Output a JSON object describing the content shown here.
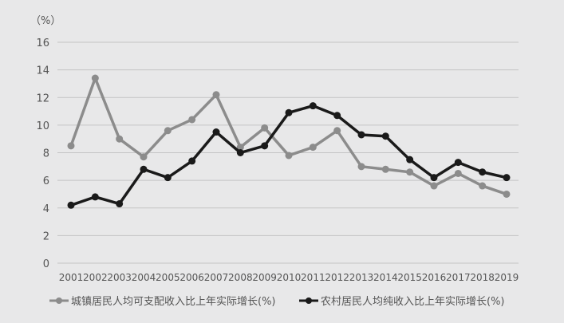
{
  "chart_data": {
    "type": "line",
    "title": "",
    "ylabel": "（%）",
    "xlabel": "",
    "ylim": [
      0,
      16
    ],
    "yticks": [
      0,
      2,
      4,
      6,
      8,
      10,
      12,
      14,
      16
    ],
    "grid": true,
    "legend_position": "bottom",
    "categories": [
      "2001",
      "2002",
      "2003",
      "2004",
      "2005",
      "2006",
      "2007",
      "2008",
      "2009",
      "2010",
      "2011",
      "2012",
      "2013",
      "2014",
      "2015",
      "2016",
      "2017",
      "2018",
      "2019"
    ],
    "series": [
      {
        "name": "城镇居民人均可支配收入比上年实际增长(%)",
        "color": "#8c8c8c",
        "values": [
          8.5,
          13.4,
          9.0,
          7.7,
          9.6,
          10.4,
          12.2,
          8.4,
          9.8,
          7.8,
          8.4,
          9.6,
          7.0,
          6.8,
          6.6,
          5.6,
          6.5,
          5.6,
          5.0
        ]
      },
      {
        "name": "农村居民人均纯收入比上年实际增长(%)",
        "color": "#1a1a1a",
        "values": [
          4.2,
          4.8,
          4.3,
          6.8,
          6.2,
          7.4,
          9.5,
          8.0,
          8.5,
          10.9,
          11.4,
          10.7,
          9.3,
          9.2,
          7.5,
          6.2,
          7.3,
          6.6,
          6.2
        ]
      }
    ]
  }
}
